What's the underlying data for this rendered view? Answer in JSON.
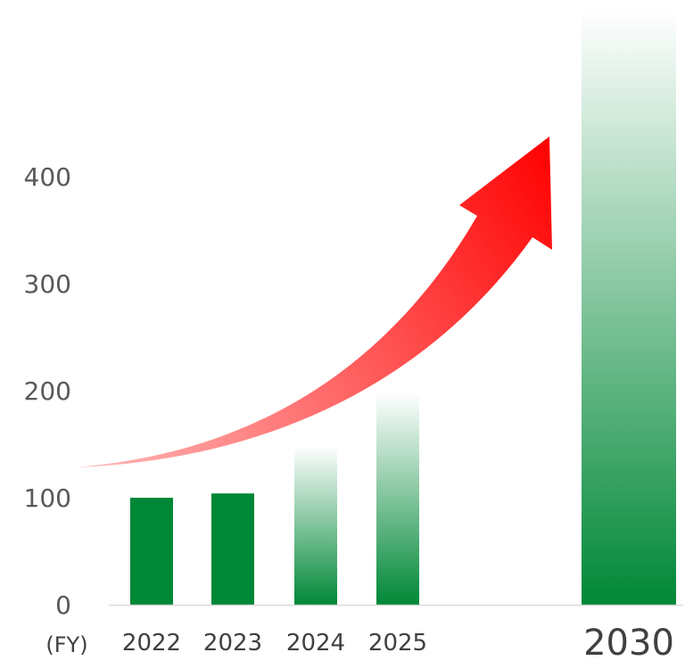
{
  "chart_data": {
    "type": "bar",
    "categories": [
      "2022",
      "2023",
      "2024",
      "2025",
      "2030"
    ],
    "values": [
      100,
      104,
      148,
      198,
      555
    ],
    "x_unit_label": "(FY)",
    "y_ticks": [
      "0",
      "100",
      "200",
      "300",
      "400"
    ],
    "ylim": [
      0,
      555
    ],
    "grid": false,
    "bar_styles": [
      "solid",
      "solid",
      "gradient",
      "gradient",
      "gradient"
    ],
    "arrow": {
      "direction": "up-right",
      "color": "#ff0000"
    },
    "colors": {
      "bar": "#008837",
      "bar_gradient_top": "#ffffff",
      "axis": "#d9d9d9",
      "arrow_start": "#ffb3b3",
      "arrow_end": "#ff0000"
    }
  }
}
